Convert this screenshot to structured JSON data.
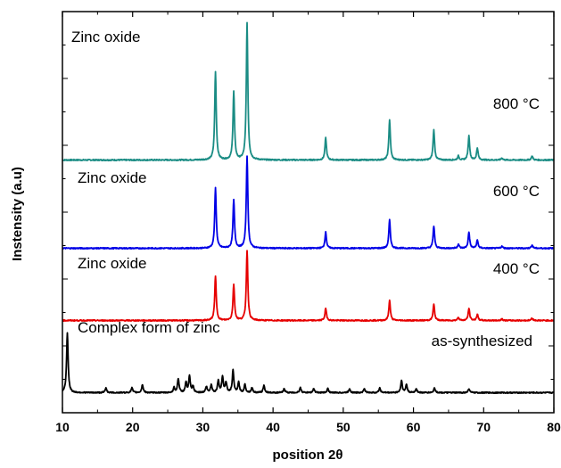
{
  "chart_data": {
    "type": "line",
    "xlabel": "position 2θ",
    "ylabel": "Instensity (a.u)",
    "xlim": [
      10,
      80
    ],
    "x_ticks": [
      10,
      20,
      30,
      40,
      50,
      60,
      70,
      80
    ],
    "y_ticks_labeled": false,
    "legend": "none",
    "grid": false,
    "series": [
      {
        "name": "800 °C",
        "material": "Zinc oxide",
        "color": "#1a8c84",
        "offset": 0.63,
        "peaks": [
          [
            31.8,
            0.22
          ],
          [
            34.4,
            0.17
          ],
          [
            36.3,
            0.34
          ],
          [
            47.5,
            0.055
          ],
          [
            56.6,
            0.1
          ],
          [
            62.9,
            0.075
          ],
          [
            66.4,
            0.01
          ],
          [
            67.9,
            0.06
          ],
          [
            69.1,
            0.03
          ],
          [
            72.6,
            0.005
          ],
          [
            76.9,
            0.01
          ]
        ]
      },
      {
        "name": "600 °C",
        "material": "Zinc oxide",
        "color": "#0000e6",
        "offset": 0.41,
        "peaks": [
          [
            31.8,
            0.15
          ],
          [
            34.4,
            0.12
          ],
          [
            36.3,
            0.23
          ],
          [
            47.5,
            0.04
          ],
          [
            56.6,
            0.07
          ],
          [
            62.9,
            0.055
          ],
          [
            66.4,
            0.01
          ],
          [
            67.9,
            0.04
          ],
          [
            69.1,
            0.02
          ],
          [
            72.6,
            0.005
          ],
          [
            76.9,
            0.008
          ]
        ]
      },
      {
        "name": "400 °C",
        "material": "Zinc oxide",
        "color": "#e60000",
        "offset": 0.23,
        "peaks": [
          [
            31.8,
            0.11
          ],
          [
            34.4,
            0.09
          ],
          [
            36.3,
            0.175
          ],
          [
            47.5,
            0.03
          ],
          [
            56.6,
            0.05
          ],
          [
            62.9,
            0.04
          ],
          [
            66.4,
            0.008
          ],
          [
            67.9,
            0.03
          ],
          [
            69.1,
            0.015
          ],
          [
            72.6,
            0.004
          ],
          [
            76.9,
            0.006
          ]
        ]
      },
      {
        "name": "as-synthesized",
        "material": "Complex form of zinc",
        "color": "#000000",
        "offset": 0.05,
        "peaks": [
          [
            10.7,
            0.15
          ],
          [
            16.2,
            0.012
          ],
          [
            19.9,
            0.012
          ],
          [
            21.4,
            0.02
          ],
          [
            25.9,
            0.012
          ],
          [
            26.5,
            0.035
          ],
          [
            27.6,
            0.025
          ],
          [
            28.1,
            0.04
          ],
          [
            28.6,
            0.015
          ],
          [
            30.5,
            0.015
          ],
          [
            31.2,
            0.02
          ],
          [
            32.2,
            0.03
          ],
          [
            32.8,
            0.04
          ],
          [
            33.3,
            0.025
          ],
          [
            34.3,
            0.055
          ],
          [
            35.1,
            0.025
          ],
          [
            36.0,
            0.02
          ],
          [
            37.0,
            0.012
          ],
          [
            38.7,
            0.018
          ],
          [
            41.6,
            0.01
          ],
          [
            43.9,
            0.012
          ],
          [
            45.8,
            0.01
          ],
          [
            47.8,
            0.01
          ],
          [
            50.9,
            0.01
          ],
          [
            53.0,
            0.01
          ],
          [
            55.2,
            0.012
          ],
          [
            58.3,
            0.03
          ],
          [
            59.0,
            0.02
          ],
          [
            60.4,
            0.01
          ],
          [
            63.0,
            0.012
          ],
          [
            67.9,
            0.01
          ]
        ]
      }
    ]
  }
}
